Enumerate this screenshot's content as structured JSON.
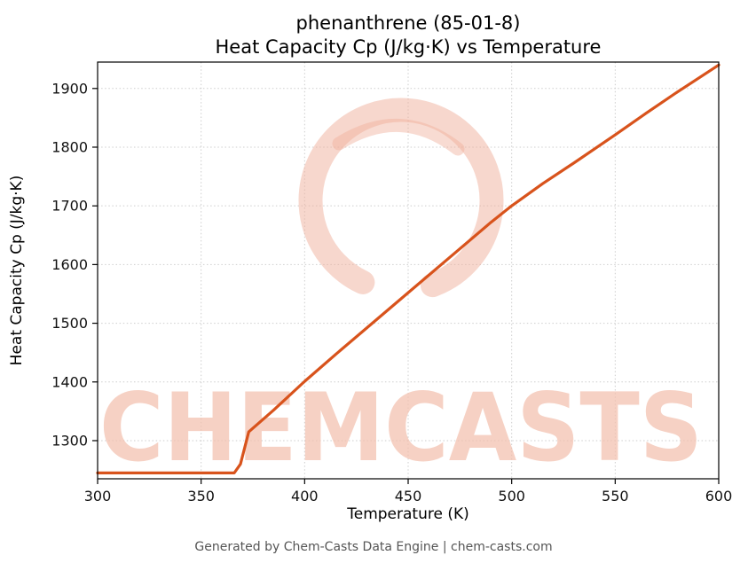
{
  "title_line1": "phenanthrene (85-01-8)",
  "title_line2": "Heat Capacity Cp (J/kg·K) vs Temperature",
  "footer": "Generated by Chem-Casts Data Engine | chem-casts.com",
  "watermark": {
    "text": "CHEMCASTS",
    "text_color": "#f3c0ae",
    "logo_color": "#f0b09c"
  },
  "chart_data": {
    "type": "line",
    "title": "phenanthrene (85-01-8) — Heat Capacity Cp (J/kg·K) vs Temperature",
    "xlabel": "Temperature (K)",
    "ylabel": "Heat Capacity Cp (J/kg·K)",
    "xlim": [
      300,
      600
    ],
    "ylim": [
      1235,
      1945
    ],
    "x_ticks": [
      300,
      350,
      400,
      450,
      500,
      550,
      600
    ],
    "y_ticks": [
      1300,
      1400,
      1500,
      1600,
      1700,
      1800,
      1900
    ],
    "grid": true,
    "legend": "none",
    "line_color": "#d8531c",
    "series": [
      {
        "name": "Heat Capacity Cp (J/kg·K)",
        "x": [
          300,
          320,
          340,
          360,
          366,
          369,
          373,
          385,
          400,
          415,
          430,
          450,
          470,
          490,
          500,
          515,
          530,
          550,
          565,
          580,
          600
        ],
        "y": [
          1245,
          1245,
          1245,
          1245,
          1245,
          1260,
          1315,
          1352,
          1401,
          1447,
          1492,
          1552,
          1612,
          1672,
          1700,
          1738,
          1773,
          1821,
          1858,
          1894,
          1940
        ]
      }
    ]
  }
}
